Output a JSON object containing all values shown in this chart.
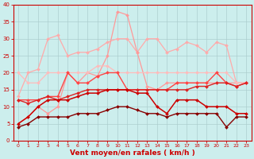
{
  "x": [
    0,
    1,
    2,
    3,
    4,
    5,
    6,
    7,
    8,
    9,
    10,
    11,
    12,
    13,
    14,
    15,
    16,
    17,
    18,
    19,
    20,
    21,
    22,
    23
  ],
  "lines": [
    {
      "y": [
        13,
        20,
        21,
        30,
        31,
        25,
        26,
        26,
        27,
        29,
        30,
        30,
        26,
        30,
        30,
        26,
        27,
        29,
        28,
        26,
        29,
        28,
        17,
        17
      ],
      "color": "#ffaaaa",
      "lw": 0.9,
      "marker": "D",
      "ms": 2.0
    },
    {
      "y": [
        5,
        7,
        10,
        8,
        10,
        20,
        17,
        20,
        19,
        25,
        38,
        37,
        26,
        16,
        15,
        17,
        17,
        17,
        17,
        17,
        17,
        17,
        17,
        17
      ],
      "color": "#ff9999",
      "lw": 0.9,
      "marker": "D",
      "ms": 2.0
    },
    {
      "y": [
        20,
        17,
        17,
        20,
        20,
        20,
        20,
        20,
        22,
        22,
        20,
        20,
        20,
        20,
        20,
        20,
        20,
        20,
        20,
        20,
        20,
        20,
        17,
        17
      ],
      "color": "#ffbbbb",
      "lw": 0.9,
      "marker": "D",
      "ms": 2.0
    },
    {
      "y": [
        12,
        12,
        12,
        13,
        13,
        20,
        17,
        17,
        19,
        20,
        20,
        15,
        15,
        15,
        15,
        15,
        17,
        17,
        17,
        17,
        20,
        17,
        16,
        17
      ],
      "color": "#ff4444",
      "lw": 1.0,
      "marker": "D",
      "ms": 2.0
    },
    {
      "y": [
        12,
        11,
        12,
        13,
        12,
        13,
        14,
        15,
        15,
        15,
        15,
        15,
        15,
        15,
        15,
        15,
        15,
        15,
        16,
        16,
        17,
        17,
        16,
        17
      ],
      "color": "#dd2222",
      "lw": 1.0,
      "marker": "D",
      "ms": 2.0
    },
    {
      "y": [
        5,
        7,
        10,
        12,
        12,
        12,
        13,
        14,
        14,
        15,
        15,
        15,
        14,
        14,
        10,
        8,
        12,
        12,
        12,
        10,
        10,
        10,
        8,
        8
      ],
      "color": "#cc0000",
      "lw": 1.1,
      "marker": "D",
      "ms": 2.0
    },
    {
      "y": [
        4,
        5,
        7,
        7,
        7,
        7,
        8,
        8,
        8,
        9,
        10,
        10,
        9,
        8,
        8,
        7,
        8,
        8,
        8,
        8,
        8,
        4,
        7,
        7
      ],
      "color": "#880000",
      "lw": 1.0,
      "marker": "D",
      "ms": 2.0
    }
  ],
  "xlabel": "Vent moyen/en rafales ( km/h )",
  "xlim": [
    -0.5,
    23.5
  ],
  "ylim": [
    0,
    40
  ],
  "yticks": [
    0,
    5,
    10,
    15,
    20,
    25,
    30,
    35,
    40
  ],
  "xticks": [
    0,
    1,
    2,
    3,
    4,
    5,
    6,
    7,
    8,
    9,
    10,
    11,
    12,
    13,
    14,
    15,
    16,
    17,
    18,
    19,
    20,
    21,
    22,
    23
  ],
  "bg_color": "#cceeed",
  "grid_color": "#aacccc",
  "xlabel_color": "#cc0000",
  "tick_color": "#cc0000",
  "spine_color": "#cc0000"
}
